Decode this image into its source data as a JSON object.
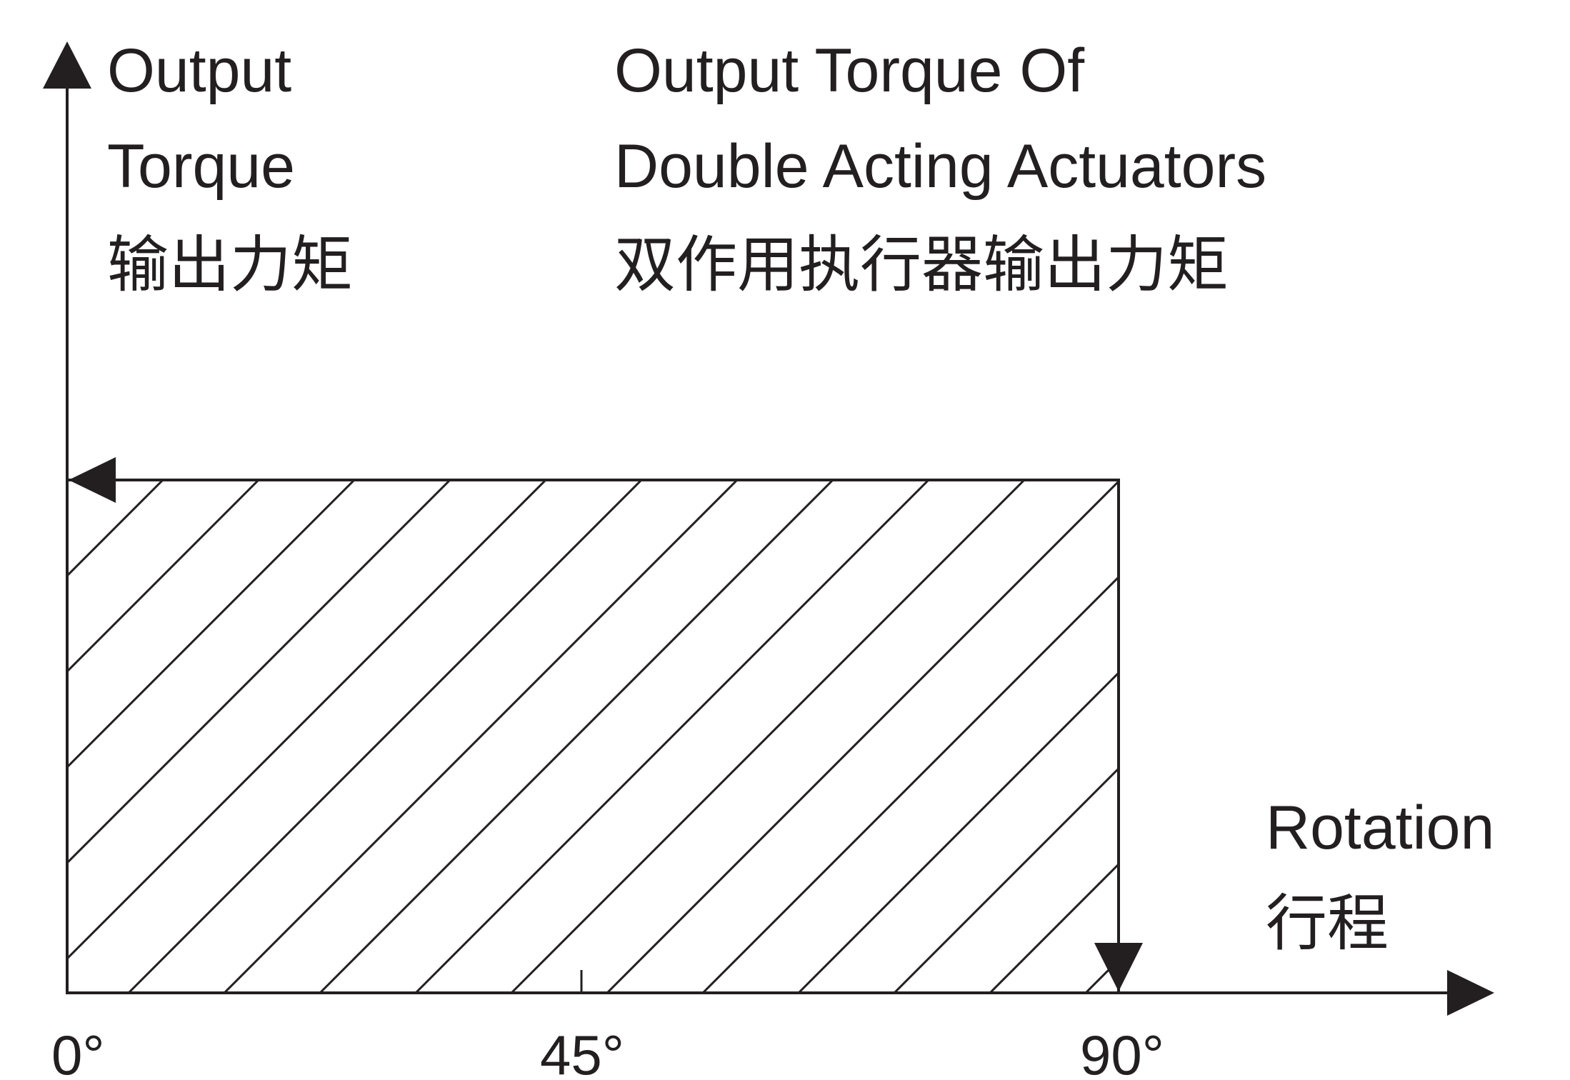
{
  "y_axis": {
    "label_line1": "Output",
    "label_line2": "Torque",
    "label_line3": "输出力矩"
  },
  "x_axis": {
    "label_line1": "Rotation",
    "label_line2": "行程",
    "ticks": [
      "0°",
      "45°",
      "90°"
    ]
  },
  "title": {
    "line1": "Output  Torque Of",
    "line2": "Double  Acting Actuators",
    "line3": "双作用执行器输出力矩"
  },
  "colors": {
    "ink": "#231f20",
    "background": "#ffffff"
  }
}
